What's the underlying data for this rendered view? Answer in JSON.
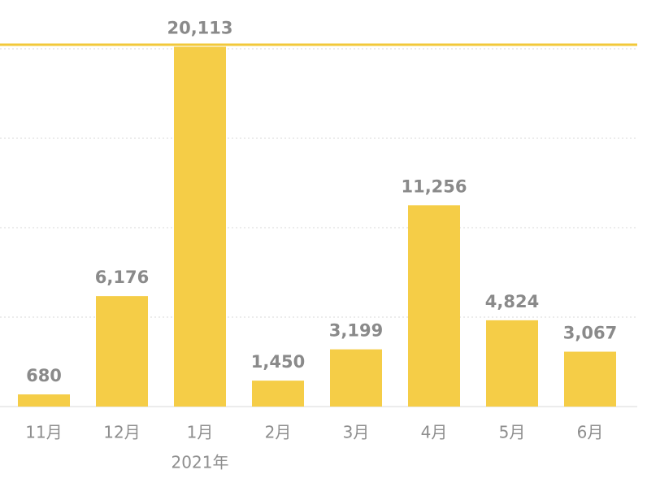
{
  "chart_data": {
    "type": "bar",
    "categories": [
      "11月",
      "12月",
      "1月",
      "2月",
      "3月",
      "4月",
      "5月",
      "6月"
    ],
    "values": [
      680,
      6176,
      20113,
      1450,
      3199,
      11256,
      4824,
      3067
    ],
    "value_labels": [
      "680",
      "6,176",
      "20,113",
      "1,450",
      "3,199",
      "11,256",
      "4,824",
      "3,067"
    ],
    "annotation": "2021年",
    "color": "#f5cd47",
    "ylim": [
      0,
      20000
    ],
    "yticks": [
      0,
      5000,
      10000,
      15000,
      20000
    ],
    "grid": true
  }
}
